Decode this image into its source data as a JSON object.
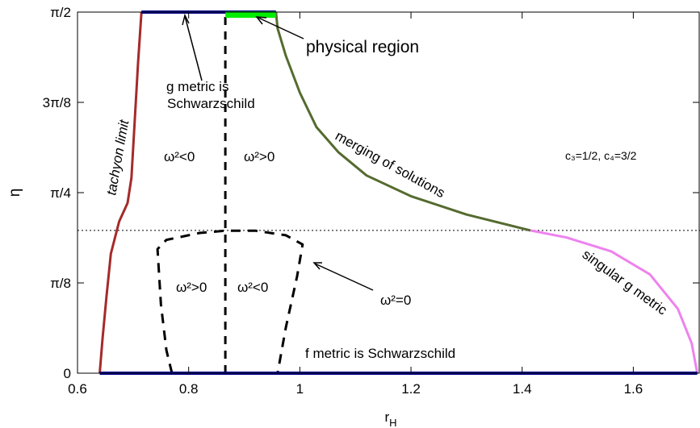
{
  "chart_data": {
    "type": "line",
    "xlabel": "r",
    "xlabel_sub": "H",
    "ylabel": "η",
    "xlim": [
      0.6,
      1.72
    ],
    "ylim": [
      0,
      1.5708
    ],
    "x_ticks": [
      {
        "v": 0.6,
        "label": "0.6"
      },
      {
        "v": 0.8,
        "label": "0.8"
      },
      {
        "v": 1.0,
        "label": "1"
      },
      {
        "v": 1.2,
        "label": "1.2"
      },
      {
        "v": 1.4,
        "label": "1.4"
      },
      {
        "v": 1.6,
        "label": "1.6"
      }
    ],
    "y_ticks": [
      {
        "v": 0,
        "label": "0"
      },
      {
        "v": 0.3927,
        "label": "π/8"
      },
      {
        "v": 0.7854,
        "label": "π/4"
      },
      {
        "v": 1.1781,
        "label": "3π/8"
      },
      {
        "v": 1.5708,
        "label": "π/2"
      }
    ],
    "reference_line": {
      "y": 0.621,
      "style": "dotted"
    },
    "series": [
      {
        "key": "tachyon",
        "color": "#a52a2a",
        "dash": "",
        "width": 3,
        "points": [
          [
            0.64,
            0.0
          ],
          [
            0.645,
            0.15
          ],
          [
            0.652,
            0.33
          ],
          [
            0.66,
            0.52
          ],
          [
            0.675,
            0.66
          ],
          [
            0.69,
            0.74
          ],
          [
            0.697,
            0.85
          ],
          [
            0.703,
            1.1
          ],
          [
            0.709,
            1.35
          ],
          [
            0.715,
            1.5708
          ]
        ]
      },
      {
        "key": "merging",
        "color": "#556b2f",
        "dash": "",
        "width": 3,
        "points": [
          [
            0.957,
            1.5708
          ],
          [
            0.96,
            1.5
          ],
          [
            0.975,
            1.38
          ],
          [
            1.0,
            1.22
          ],
          [
            1.03,
            1.07
          ],
          [
            1.07,
            0.96
          ],
          [
            1.12,
            0.86
          ],
          [
            1.2,
            0.77
          ],
          [
            1.3,
            0.69
          ],
          [
            1.415,
            0.621
          ]
        ]
      },
      {
        "key": "singular",
        "color": "#ee82ee",
        "dash": "",
        "width": 3,
        "points": [
          [
            1.415,
            0.621
          ],
          [
            1.48,
            0.59
          ],
          [
            1.56,
            0.53
          ],
          [
            1.63,
            0.43
          ],
          [
            1.68,
            0.28
          ],
          [
            1.705,
            0.13
          ],
          [
            1.715,
            0.0
          ]
        ]
      },
      {
        "key": "divider",
        "color": "#000000",
        "dash": "10,8",
        "width": 3,
        "points": [
          [
            0.866,
            0.0
          ],
          [
            0.866,
            1.5708
          ]
        ]
      },
      {
        "key": "omega_zero",
        "color": "#000000",
        "dash": "12,9",
        "width": 3,
        "points": [
          [
            0.77,
            0.0
          ],
          [
            0.76,
            0.1
          ],
          [
            0.75,
            0.3
          ],
          [
            0.744,
            0.54
          ],
          [
            0.76,
            0.58
          ],
          [
            0.82,
            0.61
          ],
          [
            0.866,
            0.62
          ],
          [
            0.92,
            0.62
          ],
          [
            0.975,
            0.6
          ],
          [
            1.005,
            0.56
          ],
          [
            0.995,
            0.42
          ],
          [
            0.975,
            0.2
          ],
          [
            0.96,
            0.0
          ]
        ]
      },
      {
        "key": "f_schwarzschild",
        "color": "#00008b",
        "dash": "",
        "width": 4,
        "points": [
          [
            0.64,
            0.0
          ],
          [
            1.715,
            0.0
          ]
        ]
      },
      {
        "key": "g_schwarzschild",
        "color": "#00008b",
        "dash": "",
        "width": 4,
        "points": [
          [
            0.715,
            1.5708
          ],
          [
            0.957,
            1.5708
          ]
        ]
      },
      {
        "key": "physical_region",
        "color": "#00ee00",
        "dash": "",
        "width": 8,
        "points": [
          [
            0.866,
            1.56
          ],
          [
            0.957,
            1.56
          ]
        ]
      }
    ],
    "annotations": {
      "physical_region": "physical region",
      "g_metric_1": "g metric is",
      "g_metric_2": "Schwarzschild",
      "tachyon_limit": "tachyon limit",
      "merging": "merging of solutions",
      "params": "c₃=1/2, c₄=3/2",
      "omega_lt_left_upper": "ω²<0",
      "omega_gt_right_upper": "ω²>0",
      "omega_gt_left_lower": "ω²>0",
      "omega_lt_right_lower": "ω²<0",
      "omega_zero": "ω²=0",
      "singular_g": "singular g metric",
      "f_metric": "f metric is Schwarzschild"
    }
  }
}
